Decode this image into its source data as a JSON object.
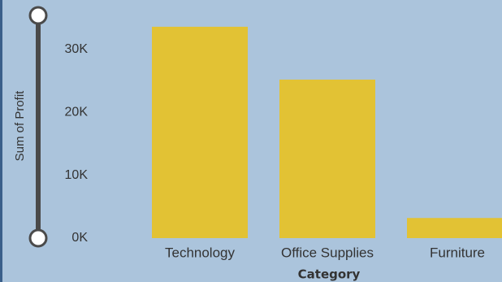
{
  "chart_data": {
    "type": "bar",
    "y_label": "Sum of Profit",
    "x_label": "Category",
    "categories": [
      "Technology",
      "Office Supplies",
      "Furniture"
    ],
    "values": [
      33600,
      25200,
      3200
    ],
    "color": "#e2c234",
    "ylim": [
      0,
      35400
    ],
    "yticks": [
      {
        "value": 0,
        "label": "0K"
      },
      {
        "value": 10000,
        "label": "10K"
      },
      {
        "value": 20000,
        "label": "20K"
      },
      {
        "value": 30000,
        "label": "30K"
      }
    ]
  }
}
